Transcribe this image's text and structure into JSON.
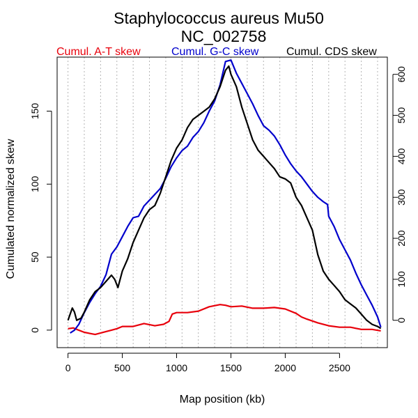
{
  "chart_data": {
    "type": "line",
    "title": "Staphylococcus aureus Mu50",
    "subtitle": "NC_002758",
    "xlabel": "Map position (kb)",
    "ylabel": "Cumulated normalized skew",
    "xlim": [
      -100,
      2940
    ],
    "ylim": [
      -12,
      187
    ],
    "y2lim": [
      -66.7,
      642
    ],
    "x_ticks": [
      0,
      500,
      1000,
      1500,
      2000,
      2500
    ],
    "y_ticks": [
      0,
      50,
      100,
      150
    ],
    "y2_ticks": [
      0,
      100,
      200,
      300,
      400,
      500,
      600
    ],
    "grid_x": [
      0,
      150,
      300,
      450,
      600,
      750,
      900,
      1050,
      1200,
      1350,
      1500,
      1650,
      1800,
      1950,
      2100,
      2250,
      2400,
      2550,
      2700,
      2850
    ],
    "grid": "vertical dotted",
    "legend_position": "top",
    "series": [
      {
        "name": "Cumul. A-T skew",
        "color": "#e8000b",
        "axis": "left",
        "points": [
          [
            0,
            1
          ],
          [
            50,
            1.5
          ],
          [
            80,
            0.5
          ],
          [
            150,
            -1.5
          ],
          [
            250,
            -3
          ],
          [
            350,
            -1
          ],
          [
            400,
            0
          ],
          [
            450,
            1
          ],
          [
            500,
            2.5
          ],
          [
            600,
            2.5
          ],
          [
            700,
            4.5
          ],
          [
            800,
            3
          ],
          [
            880,
            4
          ],
          [
            930,
            6
          ],
          [
            960,
            11
          ],
          [
            1000,
            12
          ],
          [
            1100,
            12
          ],
          [
            1200,
            13
          ],
          [
            1300,
            16
          ],
          [
            1400,
            17.5
          ],
          [
            1450,
            17
          ],
          [
            1500,
            16
          ],
          [
            1600,
            16.5
          ],
          [
            1700,
            15
          ],
          [
            1800,
            15
          ],
          [
            1900,
            15.5
          ],
          [
            2000,
            14.5
          ],
          [
            2100,
            11.5
          ],
          [
            2150,
            9
          ],
          [
            2200,
            7.5
          ],
          [
            2300,
            5
          ],
          [
            2400,
            3
          ],
          [
            2500,
            2
          ],
          [
            2600,
            2
          ],
          [
            2700,
            0.5
          ],
          [
            2800,
            0.5
          ],
          [
            2880,
            -0.5
          ]
        ]
      },
      {
        "name": "Cumul. G-C skew",
        "color": "#0000cc",
        "axis": "left",
        "points": [
          [
            20,
            -2
          ],
          [
            60,
            0
          ],
          [
            100,
            4
          ],
          [
            150,
            12
          ],
          [
            200,
            19
          ],
          [
            250,
            25
          ],
          [
            300,
            30
          ],
          [
            350,
            38
          ],
          [
            400,
            52
          ],
          [
            450,
            57
          ],
          [
            500,
            64
          ],
          [
            550,
            71
          ],
          [
            600,
            77
          ],
          [
            650,
            78
          ],
          [
            700,
            85
          ],
          [
            750,
            89
          ],
          [
            800,
            93
          ],
          [
            850,
            97
          ],
          [
            900,
            104
          ],
          [
            950,
            112
          ],
          [
            1000,
            118
          ],
          [
            1050,
            123
          ],
          [
            1100,
            126
          ],
          [
            1150,
            132
          ],
          [
            1200,
            136
          ],
          [
            1250,
            142
          ],
          [
            1300,
            150
          ],
          [
            1350,
            157
          ],
          [
            1400,
            168
          ],
          [
            1450,
            184
          ],
          [
            1500,
            185
          ],
          [
            1550,
            176
          ],
          [
            1600,
            169
          ],
          [
            1650,
            162
          ],
          [
            1700,
            155
          ],
          [
            1750,
            147
          ],
          [
            1800,
            140
          ],
          [
            1850,
            137
          ],
          [
            1900,
            133
          ],
          [
            1950,
            127
          ],
          [
            2000,
            120
          ],
          [
            2050,
            114
          ],
          [
            2100,
            109
          ],
          [
            2150,
            105
          ],
          [
            2200,
            100
          ],
          [
            2250,
            95
          ],
          [
            2300,
            91
          ],
          [
            2350,
            88
          ],
          [
            2390,
            86
          ],
          [
            2400,
            78
          ],
          [
            2450,
            71
          ],
          [
            2500,
            62
          ],
          [
            2550,
            55
          ],
          [
            2600,
            48
          ],
          [
            2650,
            39
          ],
          [
            2700,
            31
          ],
          [
            2750,
            24
          ],
          [
            2800,
            17
          ],
          [
            2850,
            9
          ],
          [
            2880,
            2
          ]
        ]
      },
      {
        "name": "Cumul. CDS skew",
        "color": "#000000",
        "axis": "right",
        "points": [
          [
            0,
            0
          ],
          [
            20,
            15
          ],
          [
            40,
            30
          ],
          [
            60,
            20
          ],
          [
            80,
            0
          ],
          [
            120,
            5
          ],
          [
            150,
            20
          ],
          [
            200,
            50
          ],
          [
            250,
            70
          ],
          [
            300,
            80
          ],
          [
            350,
            95
          ],
          [
            400,
            110
          ],
          [
            430,
            100
          ],
          [
            460,
            80
          ],
          [
            500,
            120
          ],
          [
            550,
            150
          ],
          [
            600,
            190
          ],
          [
            650,
            220
          ],
          [
            700,
            250
          ],
          [
            750,
            270
          ],
          [
            800,
            280
          ],
          [
            850,
            310
          ],
          [
            900,
            350
          ],
          [
            950,
            390
          ],
          [
            1000,
            420
          ],
          [
            1050,
            440
          ],
          [
            1100,
            470
          ],
          [
            1150,
            490
          ],
          [
            1200,
            500
          ],
          [
            1250,
            510
          ],
          [
            1300,
            520
          ],
          [
            1350,
            540
          ],
          [
            1400,
            570
          ],
          [
            1450,
            610
          ],
          [
            1480,
            620
          ],
          [
            1500,
            600
          ],
          [
            1550,
            570
          ],
          [
            1600,
            520
          ],
          [
            1650,
            480
          ],
          [
            1700,
            440
          ],
          [
            1750,
            415
          ],
          [
            1800,
            400
          ],
          [
            1850,
            385
          ],
          [
            1900,
            370
          ],
          [
            1950,
            350
          ],
          [
            2000,
            345
          ],
          [
            2050,
            335
          ],
          [
            2100,
            300
          ],
          [
            2150,
            280
          ],
          [
            2200,
            250
          ],
          [
            2250,
            220
          ],
          [
            2300,
            160
          ],
          [
            2350,
            120
          ],
          [
            2400,
            100
          ],
          [
            2450,
            85
          ],
          [
            2500,
            70
          ],
          [
            2550,
            50
          ],
          [
            2600,
            40
          ],
          [
            2650,
            30
          ],
          [
            2700,
            15
          ],
          [
            2750,
            0
          ],
          [
            2800,
            -10
          ],
          [
            2850,
            -15
          ],
          [
            2880,
            -20
          ]
        ]
      }
    ]
  }
}
